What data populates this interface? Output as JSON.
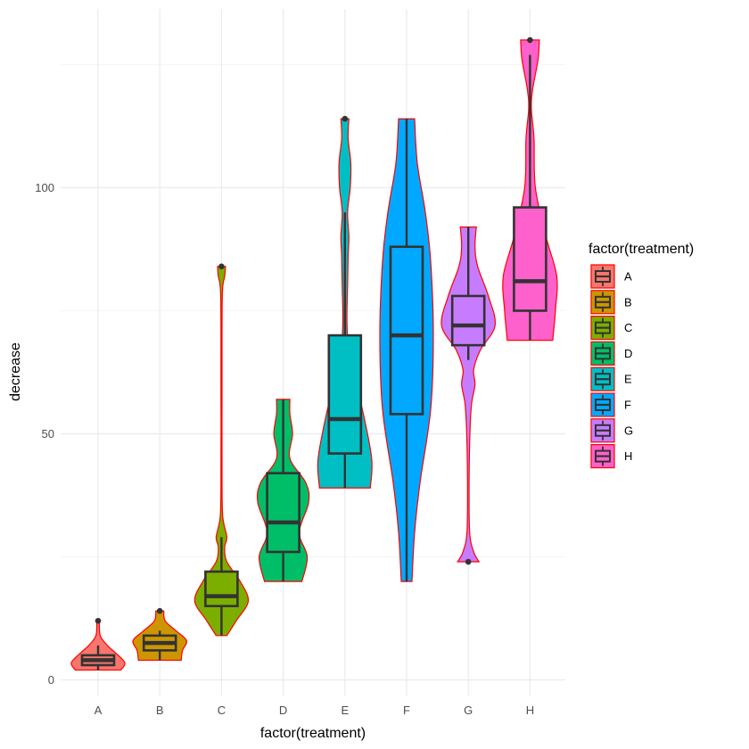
{
  "chart_data": {
    "type": "violin",
    "xlabel": "factor(treatment)",
    "ylabel": "decrease",
    "ylim": [
      -3,
      135
    ],
    "y_ticks": [
      0,
      50,
      100
    ],
    "y_minor_ticks": [
      25,
      75,
      125
    ],
    "grid": true,
    "legend": {
      "title": "factor(treatment)",
      "placement": "right"
    },
    "violin_outline_color": "#FF0000",
    "box_color": "#333333",
    "categories": [
      "A",
      "B",
      "C",
      "D",
      "E",
      "F",
      "G",
      "H"
    ],
    "series": [
      {
        "name": "A",
        "color": "#F8766D",
        "min": 2,
        "q1": 3,
        "median": 4,
        "q3": 5,
        "max": 7,
        "outliers": [
          12
        ],
        "density": [
          [
            2,
            0.85
          ],
          [
            3.5,
            1.0
          ],
          [
            5.5,
            0.65
          ],
          [
            7,
            0.35
          ],
          [
            9,
            0.08
          ],
          [
            12,
            0.05
          ]
        ]
      },
      {
        "name": "B",
        "color": "#CD9600",
        "min": 4,
        "q1": 6,
        "median": 7.5,
        "q3": 9,
        "max": 10,
        "outliers": [
          14
        ],
        "density": [
          [
            4,
            0.8
          ],
          [
            6,
            0.85
          ],
          [
            8,
            1.0
          ],
          [
            10,
            0.6
          ],
          [
            12,
            0.2
          ],
          [
            14,
            0.15
          ]
        ]
      },
      {
        "name": "C",
        "color": "#7CAE00",
        "min": 9,
        "q1": 15,
        "median": 17,
        "q3": 22,
        "max": 29,
        "outliers": [
          84
        ],
        "density": [
          [
            9,
            0.2
          ],
          [
            12,
            0.55
          ],
          [
            16,
            1.0
          ],
          [
            20,
            0.7
          ],
          [
            24,
            0.2
          ],
          [
            27,
            0.12
          ],
          [
            29,
            0.2
          ],
          [
            33,
            0.05
          ],
          [
            40,
            0.02
          ],
          [
            60,
            0.02
          ],
          [
            78,
            0.03
          ],
          [
            82,
            0.12
          ],
          [
            84,
            0.15
          ]
        ]
      },
      {
        "name": "D",
        "color": "#00BE67",
        "min": 20,
        "q1": 26,
        "median": 32,
        "q3": 42,
        "max": 57,
        "outliers": [],
        "density": [
          [
            20,
            0.7
          ],
          [
            25,
            0.9
          ],
          [
            30,
            0.6
          ],
          [
            36,
            0.95
          ],
          [
            40,
            0.85
          ],
          [
            45,
            0.25
          ],
          [
            50,
            0.35
          ],
          [
            54,
            0.25
          ],
          [
            57,
            0.25
          ]
        ]
      },
      {
        "name": "E",
        "color": "#00BFC4",
        "min": 39,
        "q1": 46,
        "median": 53,
        "q3": 70,
        "max": 95,
        "outliers": [
          114
        ],
        "density": [
          [
            39,
            0.95
          ],
          [
            45,
            1.0
          ],
          [
            55,
            0.65
          ],
          [
            65,
            0.2
          ],
          [
            72,
            0.08
          ],
          [
            80,
            0.1
          ],
          [
            86,
            0.12
          ],
          [
            90,
            0.15
          ],
          [
            95,
            0.1
          ],
          [
            100,
            0.2
          ],
          [
            105,
            0.22
          ],
          [
            110,
            0.12
          ],
          [
            114,
            0.15
          ]
        ]
      },
      {
        "name": "F",
        "color": "#00A9FF",
        "min": 20,
        "q1": 54,
        "median": 70,
        "q3": 88,
        "max": 114,
        "outliers": [],
        "density": [
          [
            20,
            0.2
          ],
          [
            30,
            0.3
          ],
          [
            40,
            0.5
          ],
          [
            55,
            0.9
          ],
          [
            70,
            1.0
          ],
          [
            85,
            0.9
          ],
          [
            95,
            0.7
          ],
          [
            105,
            0.4
          ],
          [
            114,
            0.3
          ]
        ]
      },
      {
        "name": "G",
        "color": "#C77CFF",
        "min": 65,
        "q1": 68,
        "median": 72,
        "q3": 78,
        "max": 92,
        "outliers": [
          24
        ],
        "density": [
          [
            24,
            0.4
          ],
          [
            26,
            0.2
          ],
          [
            30,
            0.05
          ],
          [
            40,
            0.03
          ],
          [
            50,
            0.06
          ],
          [
            56,
            0.12
          ],
          [
            60,
            0.25
          ],
          [
            63,
            0.2
          ],
          [
            67,
            0.45
          ],
          [
            72,
            1.0
          ],
          [
            78,
            0.75
          ],
          [
            84,
            0.35
          ],
          [
            88,
            0.25
          ],
          [
            92,
            0.3
          ]
        ]
      },
      {
        "name": "H",
        "color": "#FF61CC",
        "min": 69,
        "q1": 75,
        "median": 81,
        "q3": 96,
        "max": 127,
        "outliers": [
          130
        ],
        "density": [
          [
            69,
            0.85
          ],
          [
            75,
            0.95
          ],
          [
            82,
            1.0
          ],
          [
            90,
            0.6
          ],
          [
            100,
            0.2
          ],
          [
            110,
            0.15
          ],
          [
            116,
            0.05
          ],
          [
            120,
            0.1
          ],
          [
            126,
            0.3
          ],
          [
            130,
            0.35
          ]
        ]
      }
    ]
  }
}
